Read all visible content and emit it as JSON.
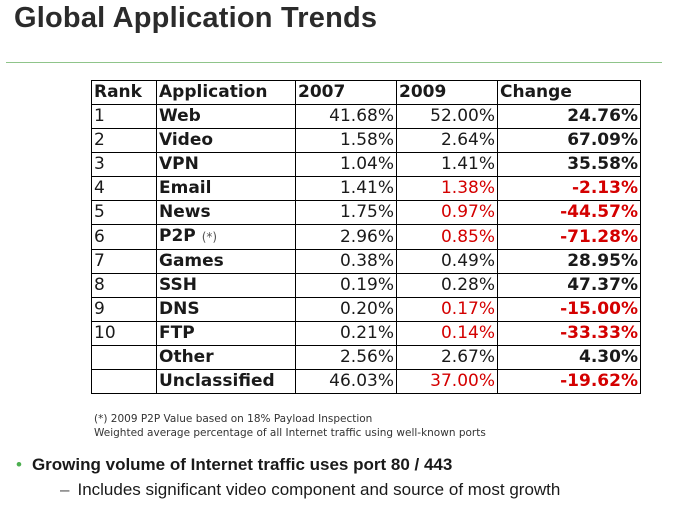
{
  "title": "Global Application Trends",
  "table": {
    "headers": [
      "Rank",
      "Application",
      "2007",
      "2009",
      "Change"
    ],
    "rows": [
      {
        "rank": "1",
        "app": "Web",
        "note": "",
        "y2007": "41.68%",
        "y2009": "52.00%",
        "y2009_neg": false,
        "change": "24.76%",
        "change_neg": false
      },
      {
        "rank": "2",
        "app": "Video",
        "note": "",
        "y2007": "1.58%",
        "y2009": "2.64%",
        "y2009_neg": false,
        "change": "67.09%",
        "change_neg": false
      },
      {
        "rank": "3",
        "app": "VPN",
        "note": "",
        "y2007": "1.04%",
        "y2009": "1.41%",
        "y2009_neg": false,
        "change": "35.58%",
        "change_neg": false
      },
      {
        "rank": "4",
        "app": "Email",
        "note": "",
        "y2007": "1.41%",
        "y2009": "1.38%",
        "y2009_neg": true,
        "change": "-2.13%",
        "change_neg": true
      },
      {
        "rank": "5",
        "app": "News",
        "note": "",
        "y2007": "1.75%",
        "y2009": "0.97%",
        "y2009_neg": true,
        "change": "-44.57%",
        "change_neg": true
      },
      {
        "rank": "6",
        "app": "P2P",
        "note": "(*)",
        "y2007": "2.96%",
        "y2009": "0.85%",
        "y2009_neg": true,
        "change": "-71.28%",
        "change_neg": true
      },
      {
        "rank": "7",
        "app": "Games",
        "note": "",
        "y2007": "0.38%",
        "y2009": "0.49%",
        "y2009_neg": false,
        "change": "28.95%",
        "change_neg": false
      },
      {
        "rank": "8",
        "app": "SSH",
        "note": "",
        "y2007": "0.19%",
        "y2009": "0.28%",
        "y2009_neg": false,
        "change": "47.37%",
        "change_neg": false
      },
      {
        "rank": "9",
        "app": "DNS",
        "note": "",
        "y2007": "0.20%",
        "y2009": "0.17%",
        "y2009_neg": true,
        "change": "-15.00%",
        "change_neg": true
      },
      {
        "rank": "10",
        "app": "FTP",
        "note": "",
        "y2007": "0.21%",
        "y2009": "0.14%",
        "y2009_neg": true,
        "change": "-33.33%",
        "change_neg": true
      },
      {
        "rank": "",
        "app": "Other",
        "note": "",
        "y2007": "2.56%",
        "y2009": "2.67%",
        "y2009_neg": false,
        "change": "4.30%",
        "change_neg": false
      },
      {
        "rank": "",
        "app": "Unclassified",
        "note": "",
        "y2007": "46.03%",
        "y2009": "37.00%",
        "y2009_neg": true,
        "change": "-19.62%",
        "change_neg": true
      }
    ]
  },
  "footnotes": [
    "(*) 2009 P2P Value based on 18% Payload Inspection",
    "Weighted average percentage of all Internet traffic using well-known ports"
  ],
  "bullet": "Growing volume of Internet traffic uses port 80  / 443",
  "subbullet": "Includes significant video component and source of most growth",
  "colors": {
    "negative": "#d40000",
    "rule": "#8fc48a",
    "bullet": "#4caf50"
  }
}
